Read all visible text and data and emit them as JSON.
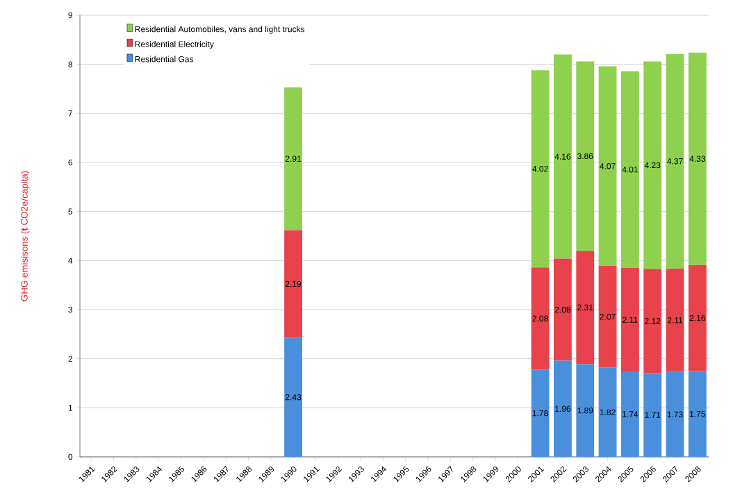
{
  "chart_data": {
    "type": "bar",
    "stacked": true,
    "ylabel": "GHG emisisons (**t** CO2e/capita)",
    "categories": [
      "1981",
      "1982",
      "1983",
      "1984",
      "1985",
      "1986",
      "1987",
      "1988",
      "1989",
      "1990",
      "1991",
      "1992",
      "1993",
      "1994",
      "1995",
      "1996",
      "1997",
      "1998",
      "1999",
      "2000",
      "2001",
      "2002",
      "2003",
      "2004",
      "2005",
      "2006",
      "2007",
      "2008"
    ],
    "series": [
      {
        "name": "Residential Gas",
        "color": "#4a8fdc",
        "values": [
          null,
          null,
          null,
          null,
          null,
          null,
          null,
          null,
          null,
          2.43,
          null,
          null,
          null,
          null,
          null,
          null,
          null,
          null,
          null,
          null,
          1.78,
          1.96,
          1.89,
          1.82,
          1.74,
          1.71,
          1.73,
          1.75
        ]
      },
      {
        "name": "Residential Electricity",
        "color": "#e8424c",
        "values": [
          null,
          null,
          null,
          null,
          null,
          null,
          null,
          null,
          null,
          2.19,
          null,
          null,
          null,
          null,
          null,
          null,
          null,
          null,
          null,
          null,
          2.08,
          2.08,
          2.31,
          2.07,
          2.11,
          2.12,
          2.11,
          2.16
        ]
      },
      {
        "name": "Residential Automobiles, vans and light trucks",
        "color": "#8fd14f",
        "values": [
          null,
          null,
          null,
          null,
          null,
          null,
          null,
          null,
          null,
          2.91,
          null,
          null,
          null,
          null,
          null,
          null,
          null,
          null,
          null,
          null,
          4.02,
          4.16,
          3.86,
          4.07,
          4.01,
          4.23,
          4.37,
          4.33
        ]
      }
    ],
    "ylim": [
      0,
      9
    ],
    "yticks": [
      0,
      1,
      2,
      3,
      4,
      5,
      6,
      7,
      8,
      9
    ],
    "grid": "y",
    "legend": "top left",
    "data_labels": true
  }
}
